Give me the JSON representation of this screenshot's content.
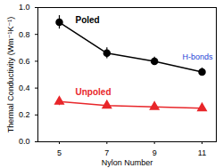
{
  "chart_data": {
    "type": "line",
    "x_label": "Nylon Number",
    "y_label": "Thermal Conductivity (Wm⁻¹K⁻¹)",
    "x": [
      5,
      7,
      9,
      11
    ],
    "xlim": [
      4.1,
      11.6
    ],
    "xticks": [
      5,
      7,
      9,
      11
    ],
    "ylim": [
      0,
      1.0
    ],
    "yticks": [
      {
        "value": 0,
        "label": "0.0"
      },
      0.2,
      0.4,
      0.6,
      0.8,
      {
        "value": 1,
        "label": "1.0"
      }
    ],
    "series": [
      {
        "name": "Poled",
        "color": "#000000",
        "marker": "circle",
        "values": [
          0.89,
          0.66,
          0.6,
          0.52
        ],
        "errors": [
          0.05,
          0.04,
          0.03,
          0.03
        ]
      },
      {
        "name": "Unpoled",
        "color": "#e8262a",
        "marker": "triangle",
        "values": [
          0.3,
          0.27,
          0.26,
          0.25
        ],
        "errors": [
          0.03,
          0.02,
          0.02,
          0.02
        ]
      }
    ],
    "annotations": [
      {
        "text": "H-bonds",
        "color": "#1f3fd6"
      }
    ]
  }
}
